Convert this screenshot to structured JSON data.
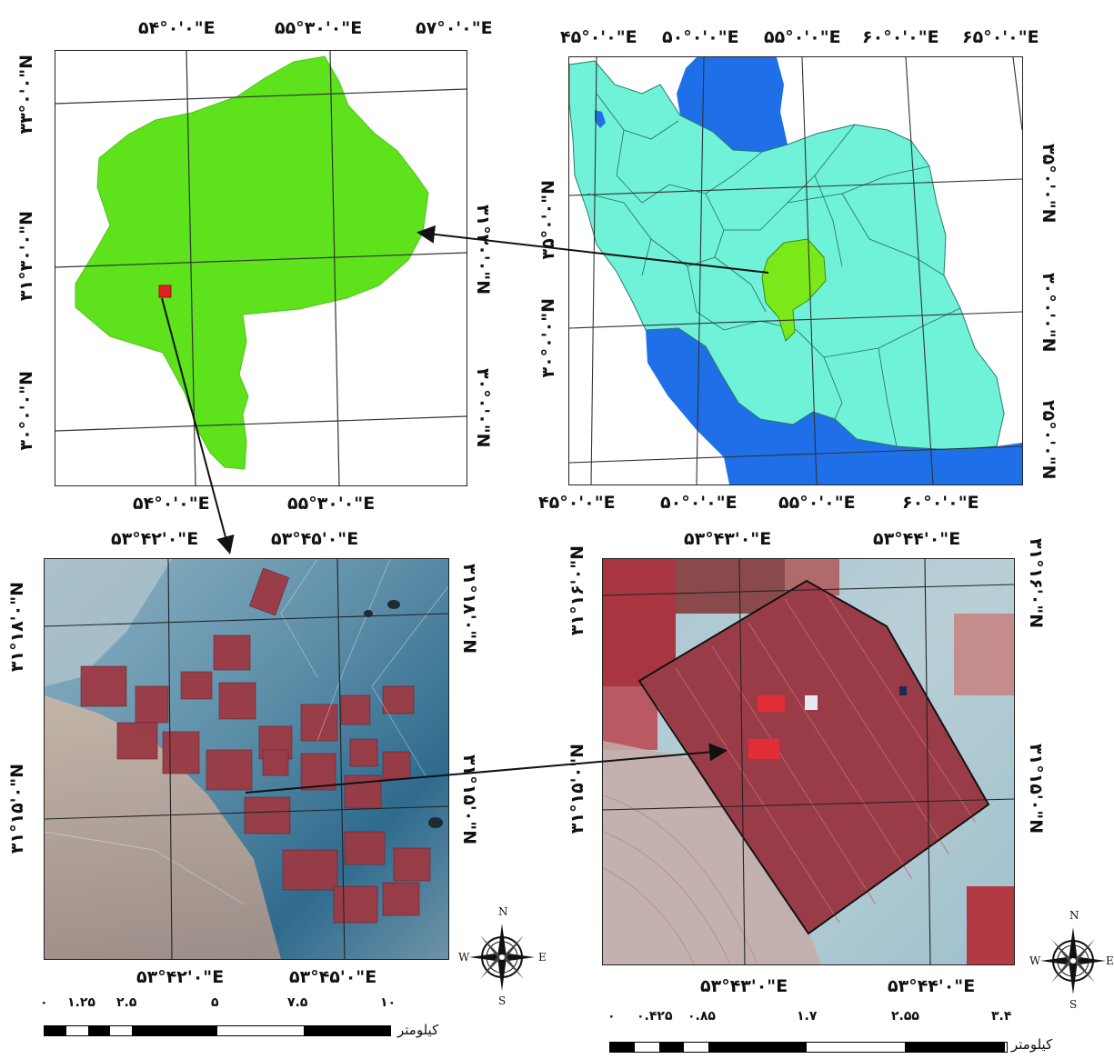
{
  "yazd_map": {
    "top_labels": [
      "۵۴°۰'۰\"E",
      "۵۵°۳۰'۰\"E",
      "۵۷°۰'۰\"E"
    ],
    "bottom_labels": [
      "۵۴°۰'۰\"E",
      "۵۵°۳۰'۰\"E"
    ],
    "left_labels": [
      "۳۳°۰'۰\"N",
      "۳۱°۳۰'۰\"N",
      "۳۰°۰'۰\"N"
    ],
    "right_labels": [
      "۳۱°۳۰'۰\"N",
      "۳۰°۰'۰\"N"
    ],
    "province_color": "#5ee21c",
    "study_area_color": "#e02020"
  },
  "iran_map": {
    "top_labels": [
      "۴۵°۰'۰\"E",
      "۵۰°۰'۰\"E",
      "۵۵°۰'۰\"E",
      "۶۰°۰'۰\"E",
      "۶۵°۰'۰\"E"
    ],
    "bottom_labels": [
      "۴۵°۰'۰\"E",
      "۵۰°۰'۰\"E",
      "۵۵°۰'۰\"E",
      "۶۰°۰'۰\"E"
    ],
    "left_labels": [
      "۳۵°۰'۰\"N",
      "۳۰°۰'۰\"N"
    ],
    "right_labels": [
      "۳۵°۰'۰\"N",
      "۳۰°۰'۰\"N",
      "۲۵°۰'۰\"N"
    ],
    "land_color": "#6ff2d8",
    "water_color": "#1f6fe8",
    "highlight_color": "#7be81a"
  },
  "satellite_wide": {
    "top_labels": [
      "۵۳°۴۲'۰\"E",
      "۵۳°۴۵'۰\"E"
    ],
    "bottom_labels": [
      "۵۳°۴۲'۰\"E",
      "۵۳°۴۵'۰\"E"
    ],
    "left_labels": [
      "۳۱°۱۸'۰\"N",
      "۳۱°۱۵'۰\"N"
    ],
    "right_labels": [
      "۳۱°۱۸'۰\"N",
      "۳۱°۱۵'۰\"N"
    ],
    "scale_numbers": [
      "۰",
      "۱.۲۵",
      "۲.۵",
      "۵",
      "۷.۵",
      "۱۰"
    ],
    "scale_unit": "کیلومتر",
    "compass": {
      "n": "N",
      "s": "S",
      "e": "E",
      "w": "W"
    }
  },
  "satellite_zoom": {
    "top_labels": [
      "۵۳°۴۳'۰\"E",
      "۵۳°۴۴'۰\"E"
    ],
    "bottom_labels": [
      "۵۳°۴۳'۰\"E",
      "۵۳°۴۴'۰\"E"
    ],
    "left_labels": [
      "۳۱°۱۶'۰\"N",
      "۳۱°۱۵'۰\"N"
    ],
    "right_labels": [
      "۳۱°۱۶'۰\"N",
      "۳۱°۱۵'۰\"N"
    ],
    "scale_numbers": [
      "۰",
      "۰.۴۲۵",
      "۰.۸۵",
      "۱.۷",
      "۲.۵۵",
      "۳.۴"
    ],
    "scale_unit": "کیلومتر",
    "compass": {
      "n": "N",
      "s": "S",
      "e": "E",
      "w": "W"
    }
  }
}
